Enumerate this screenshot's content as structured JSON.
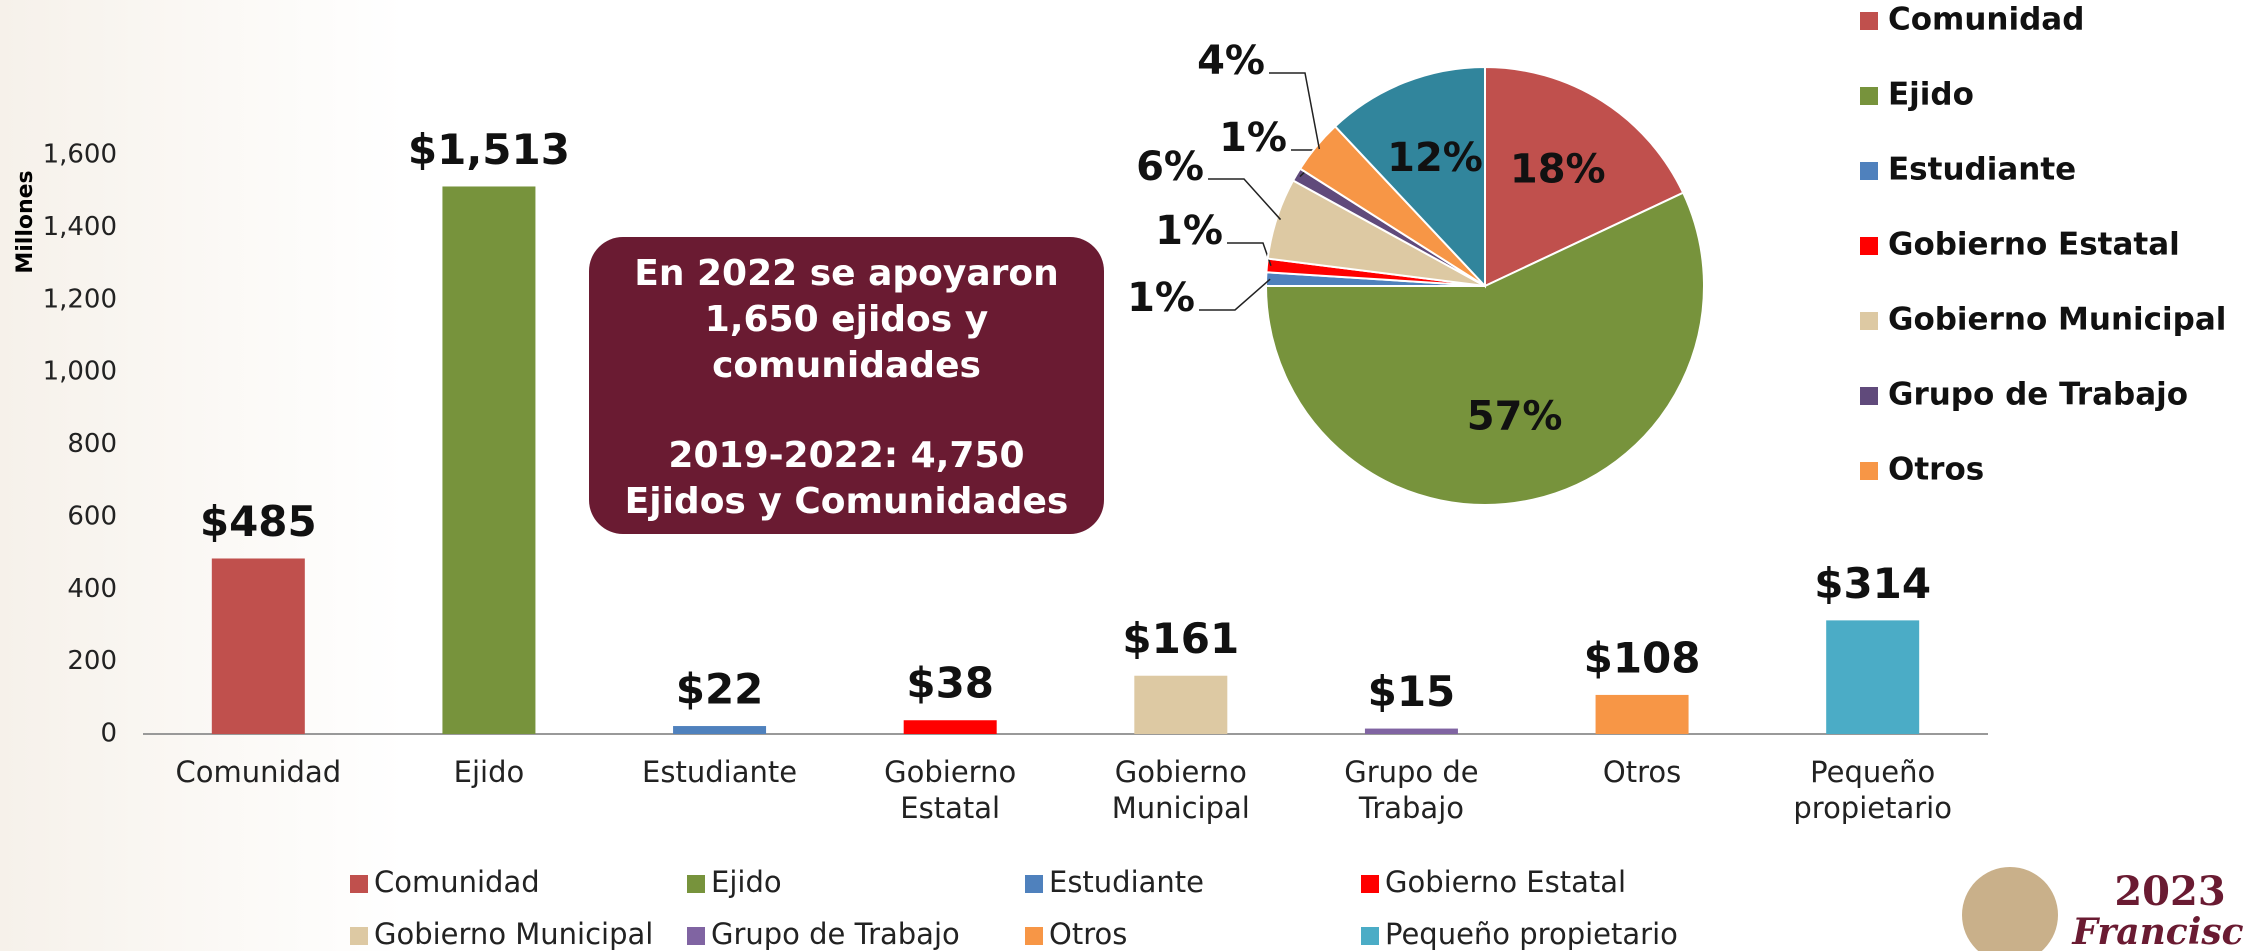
{
  "chart_data": [
    {
      "type": "bar",
      "y_label": "Millones",
      "categories": [
        "Comunidad",
        "Ejido",
        "Estudiante",
        "Gobierno Estatal",
        "Gobierno Municipal",
        "Grupo de Trabajo",
        "Otros",
        "Pequeño propietario"
      ],
      "values": [
        485,
        1513,
        22,
        38,
        161,
        15,
        108,
        314
      ],
      "value_labels": [
        "$485",
        "$1,513",
        "$22",
        "$38",
        "$161",
        "$15",
        "$108",
        "$314"
      ],
      "colors": [
        "#c0504d",
        "#77933c",
        "#4f81bd",
        "#ff0000",
        "#ddc9a3",
        "#8064a2",
        "#f79646",
        "#4bacc6"
      ],
      "ylim": [
        0,
        1600
      ],
      "yticks": [
        0,
        200,
        400,
        600,
        800,
        {
          "value": 1000,
          "label": "1,000"
        },
        {
          "value": 1200,
          "label": "1,200"
        },
        {
          "value": 1400,
          "label": "1,400"
        },
        {
          "value": 1600,
          "label": "1,600"
        }
      ],
      "grid": false,
      "legend": "bottom"
    },
    {
      "type": "pie",
      "categories": [
        "Comunidad",
        "Ejido",
        "Estudiante",
        "Gobierno Estatal",
        "Gobierno Municipal",
        "Grupo de Trabajo",
        "Otros",
        null
      ],
      "values": [
        18,
        57,
        1,
        1,
        6,
        1,
        4,
        12
      ],
      "value_labels": [
        "18%",
        "57%",
        "1%",
        "1%",
        "6%",
        "1%",
        "4%",
        "12%"
      ],
      "colors": [
        "#c0504d",
        "#77933c",
        "#4f81bd",
        "#ff0000",
        "#ddc9a3",
        "#604a7b",
        "#f79646",
        "#31859c"
      ],
      "legend": "right"
    }
  ],
  "annotation": {
    "lines": [
      "En 2022 se apoyaron 1,650 ejidos y comunidades",
      "2019-2022: 4,750 Ejidos y Comunidades"
    ]
  },
  "logo": {
    "year": "2023",
    "name": "Francisco"
  }
}
